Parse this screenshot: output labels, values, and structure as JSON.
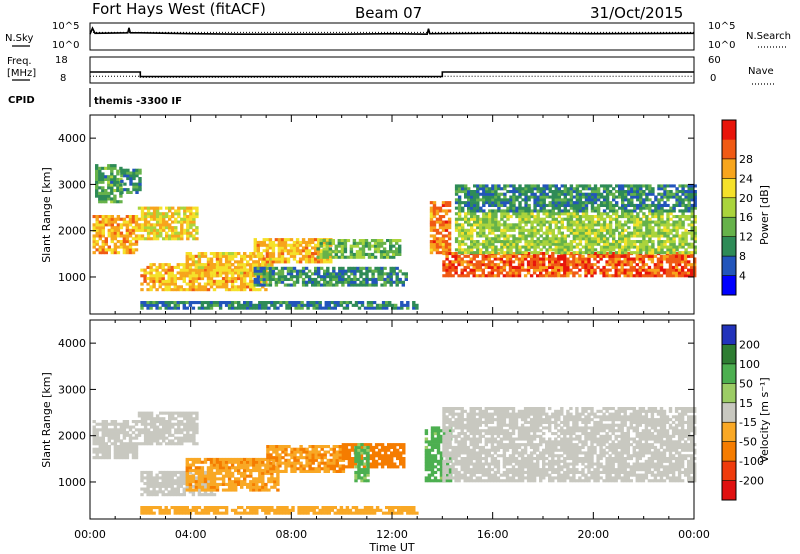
{
  "header": {
    "station": "Fort Hays West (fitACF)",
    "beam": "Beam 07",
    "date": "31/Oct/2015"
  },
  "top_panels": {
    "nsky_label": "N.Sky",
    "nsearch_label": "N.Search",
    "noise_ticks": [
      "10^5",
      "10^0"
    ],
    "freq_label_1": "Freq.",
    "freq_label_2": "[MHz]",
    "freq_ticks": [
      "18",
      "8"
    ],
    "nave_label": "Nave",
    "nave_ticks": [
      "60",
      "0"
    ],
    "cpid_label": "CPID",
    "cpid_text": "themis -3300 IF"
  },
  "chart_data": [
    {
      "type": "line",
      "name": "noise",
      "x_unit": "hours UT",
      "series": [
        {
          "name": "N.Sky",
          "style": "solid",
          "x": [
            0,
            0.1,
            0.2,
            1.5,
            1.55,
            1.6,
            2,
            4,
            6,
            8,
            10,
            12,
            13.4,
            13.45,
            13.5,
            16,
            20,
            24
          ],
          "y": [
            3.0,
            4.3,
            3.2,
            3.3,
            4.4,
            3.3,
            3.3,
            3.1,
            3.0,
            3.0,
            3.0,
            3.1,
            3.0,
            4.2,
            3.1,
            3.2,
            3.1,
            3.2
          ]
        },
        {
          "name": "N.Search",
          "style": "dotted",
          "x": [
            0,
            4,
            8,
            12,
            16,
            20,
            24
          ],
          "y": [
            3.4,
            3.4,
            3.4,
            3.4,
            3.4,
            3.4,
            3.4
          ]
        }
      ]
    },
    {
      "type": "line",
      "name": "frequency-nave",
      "x_unit": "hours UT",
      "series": [
        {
          "name": "Freq.",
          "style": "solid",
          "x": [
            0,
            2,
            2,
            14,
            14,
            24
          ],
          "y": [
            13,
            13,
            10.5,
            10.5,
            13,
            13
          ]
        },
        {
          "name": "Nave",
          "style": "dotted",
          "x": [
            0,
            2,
            2,
            14,
            14,
            24
          ],
          "y": [
            16,
            16,
            12,
            12,
            16,
            16
          ]
        }
      ]
    },
    {
      "type": "heatmap",
      "name": "power",
      "xlabel": "",
      "ylabel": "Slant Range [km]",
      "xlim": [
        0,
        24
      ],
      "ylim": [
        200,
        4500
      ],
      "yticks": [
        1000,
        2000,
        3000,
        4000
      ],
      "colorbar": {
        "label": "Power [dB]",
        "ticks": [
          4,
          8,
          12,
          16,
          20,
          24,
          28
        ],
        "range": [
          0,
          32
        ],
        "colors": [
          "#0000ff",
          "#2255bb",
          "#2e8b57",
          "#66b24a",
          "#aad43c",
          "#f5e12a",
          "#f7a51c",
          "#f05a14",
          "#e8140a"
        ]
      },
      "regions": [
        {
          "x": [
            0.1,
            1.9
          ],
          "y": [
            1500,
            2300
          ],
          "value": 23
        },
        {
          "x": [
            0.2,
            1.2
          ],
          "y": [
            2600,
            3400
          ],
          "value": 11
        },
        {
          "x": [
            1.2,
            2.0
          ],
          "y": [
            2800,
            3300
          ],
          "value": 9
        },
        {
          "x": [
            1.9,
            4.3
          ],
          "y": [
            1800,
            2500
          ],
          "value": 20
        },
        {
          "x": [
            2.0,
            7.0
          ],
          "y": [
            700,
            1300
          ],
          "value": 22
        },
        {
          "x": [
            3.8,
            7.2
          ],
          "y": [
            1000,
            1500
          ],
          "value": 21
        },
        {
          "x": [
            6.5,
            9.5
          ],
          "y": [
            1300,
            1800
          ],
          "value": 22
        },
        {
          "x": [
            9.0,
            12.3
          ],
          "y": [
            1400,
            1800
          ],
          "value": 13
        },
        {
          "x": [
            6.5,
            12.5
          ],
          "y": [
            800,
            1200
          ],
          "value": 9
        },
        {
          "x": [
            13.5,
            14.3
          ],
          "y": [
            1500,
            2600
          ],
          "value": 25
        },
        {
          "x": [
            14.0,
            24.0
          ],
          "y": [
            1000,
            1500
          ],
          "value": 27
        },
        {
          "x": [
            14.5,
            24.0
          ],
          "y": [
            1500,
            2400
          ],
          "value": 15
        },
        {
          "x": [
            14.5,
            24.0
          ],
          "y": [
            2400,
            3000
          ],
          "value": 9
        },
        {
          "x": [
            2.0,
            13.0
          ],
          "y": [
            300,
            450
          ],
          "value": 8
        }
      ]
    },
    {
      "type": "heatmap",
      "name": "velocity",
      "xlabel": "Time UT",
      "ylabel": "Slant Range [km]",
      "xlim": [
        0,
        24
      ],
      "ylim": [
        200,
        4500
      ],
      "xticks": [
        "00:00",
        "04:00",
        "08:00",
        "12:00",
        "16:00",
        "20:00",
        "00:00"
      ],
      "yticks": [
        1000,
        2000,
        3000,
        4000
      ],
      "colorbar": {
        "label": "Velocity [m s⁻¹]",
        "ticks": [
          200,
          100,
          50,
          15,
          -15,
          -50,
          -100,
          -200
        ],
        "colors": [
          "#2233bb",
          "#2e7d32",
          "#4caf50",
          "#9ccc65",
          "#c8c8c0",
          "#f9a825",
          "#f57c00",
          "#ef3b0c",
          "#e01010"
        ]
      },
      "regions": [
        {
          "x": [
            0.1,
            1.9
          ],
          "y": [
            1500,
            2300
          ],
          "value": 0
        },
        {
          "x": [
            1.9,
            4.3
          ],
          "y": [
            1800,
            2500
          ],
          "value": 0
        },
        {
          "x": [
            2.0,
            5.0
          ],
          "y": [
            700,
            1200
          ],
          "value": 0
        },
        {
          "x": [
            3.8,
            7.5
          ],
          "y": [
            800,
            1500
          ],
          "value": -40
        },
        {
          "x": [
            7.0,
            10.0
          ],
          "y": [
            1200,
            1800
          ],
          "value": -45
        },
        {
          "x": [
            10.0,
            12.5
          ],
          "y": [
            1300,
            1800
          ],
          "value": -70
        },
        {
          "x": [
            10.5,
            11.0
          ],
          "y": [
            1000,
            1800
          ],
          "value": 40
        },
        {
          "x": [
            13.3,
            14.3
          ],
          "y": [
            1000,
            2200
          ],
          "value": 45
        },
        {
          "x": [
            14.0,
            24.0
          ],
          "y": [
            1000,
            2600
          ],
          "value": 0
        },
        {
          "x": [
            2.0,
            13.0
          ],
          "y": [
            300,
            450
          ],
          "value": -30
        }
      ]
    }
  ]
}
